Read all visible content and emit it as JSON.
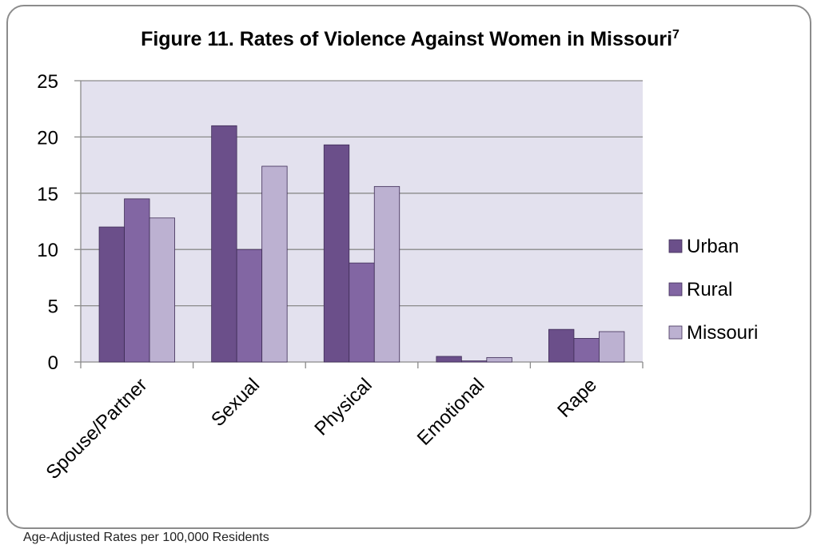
{
  "chart_data": {
    "type": "bar",
    "title": "Figure 11. Rates of Violence Against Women in Missouri",
    "title_sup": "7",
    "categories": [
      "Spouse/Partner",
      "Sexual",
      "Physical",
      "Emotional",
      "Rape"
    ],
    "series": [
      {
        "name": "Urban",
        "values": [
          12.0,
          21.0,
          19.3,
          0.5,
          2.9
        ],
        "color": "#6b4f8a"
      },
      {
        "name": "Rural",
        "values": [
          14.5,
          10.0,
          8.8,
          0.1,
          2.1
        ],
        "color": "#8266a3"
      },
      {
        "name": "Missouri",
        "values": [
          12.8,
          17.4,
          15.6,
          0.4,
          2.7
        ],
        "color": "#bcb1d1"
      }
    ],
    "yticks": [
      "0",
      "5",
      "10",
      "15",
      "20",
      "25"
    ],
    "ylim": [
      0,
      25
    ],
    "grid": true,
    "legend": "right",
    "plot_background": "#e3e1ee",
    "xlabel": "",
    "ylabel": ""
  },
  "footnote": "Age-Adjusted Rates per 100,000 Residents"
}
